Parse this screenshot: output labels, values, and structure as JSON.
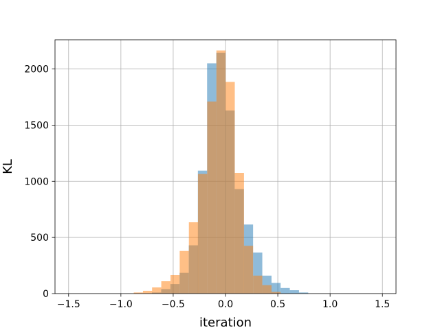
{
  "chart_data": {
    "type": "bar",
    "title": "",
    "xlabel": "iteration",
    "ylabel": "KL",
    "xlim": [
      -1.63,
      1.63
    ],
    "ylim": [
      0,
      2260
    ],
    "grid": true,
    "x_ticks": [
      -1.5,
      -1.0,
      -0.5,
      0.0,
      0.5,
      1.0,
      1.5
    ],
    "x_tick_labels": [
      "−1.5",
      "−1.0",
      "−0.5",
      "0.0",
      "0.5",
      "1.0",
      "1.5"
    ],
    "y_ticks": [
      0,
      500,
      1000,
      1500,
      2000
    ],
    "y_tick_labels": [
      "0",
      "500",
      "1000",
      "1500",
      "2000"
    ],
    "series": [
      {
        "color": "#1f77b4",
        "alpha": 0.5,
        "bin_width": 0.0878,
        "bins_left": [
          -1.493,
          -1.405,
          -1.317,
          -1.23,
          -1.142,
          -1.054,
          -0.966,
          -0.878,
          -0.79,
          -0.703,
          -0.615,
          -0.527,
          -0.439,
          -0.351,
          -0.264,
          -0.176,
          -0.088,
          0.0,
          0.088,
          0.176,
          0.264,
          0.352,
          0.439,
          0.527,
          0.615,
          0.703,
          0.791,
          0.878,
          0.966,
          1.054,
          1.142,
          1.23,
          1.318
        ],
        "values": [
          0,
          0,
          0,
          0,
          0,
          0,
          0,
          0,
          2,
          10,
          40,
          85,
          185,
          430,
          1095,
          2050,
          2145,
          1630,
          930,
          615,
          365,
          160,
          95,
          50,
          30,
          10,
          0,
          0,
          0,
          0,
          0,
          0,
          0
        ]
      },
      {
        "color": "#ff7f0e",
        "alpha": 0.5,
        "bin_width": 0.0878,
        "bins_left": [
          -0.877,
          -0.789,
          -0.702,
          -0.614,
          -0.526,
          -0.438,
          -0.35,
          -0.263,
          -0.175,
          -0.087,
          0.001,
          0.089,
          0.176,
          0.264,
          0.352,
          0.44
        ],
        "values": [
          10,
          25,
          55,
          110,
          165,
          380,
          635,
          1065,
          1710,
          2165,
          1885,
          1075,
          425,
          160,
          75,
          15
        ]
      }
    ]
  }
}
